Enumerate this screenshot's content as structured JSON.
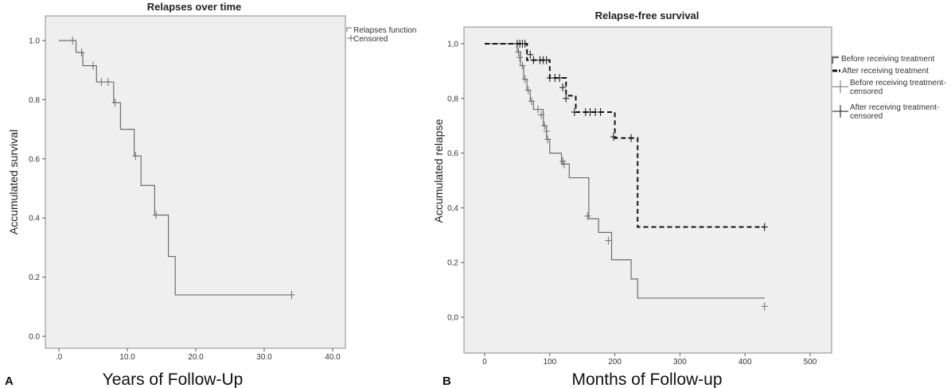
{
  "panels": {
    "A": {
      "letter": "A",
      "legend": {
        "relapses": "Relapses function",
        "censored": "Censored"
      }
    },
    "B": {
      "letter": "B",
      "legend": {
        "before": "Before receiving treatment",
        "after": "After receiving treatment",
        "before_censored_1": "Before receiving treatment-",
        "before_censored_2": "censored",
        "after_censored_1": "After receiving treatment-",
        "after_censored_2": "censored"
      }
    }
  },
  "chart_data": [
    {
      "type": "line",
      "title": "Relapses over time",
      "xlabel": "Years of Follow-Up",
      "ylabel": "Accumulated survival",
      "xlim": [
        0,
        40
      ],
      "ylim": [
        0,
        1
      ],
      "x_ticks": [
        0,
        10,
        20,
        30,
        40
      ],
      "x_tick_labels": [
        ".0",
        "10.0",
        "20.0",
        "30.0",
        "40.0"
      ],
      "y_ticks": [
        0,
        0.2,
        0.4,
        0.6,
        0.8,
        1.0
      ],
      "y_tick_labels": [
        "0.0",
        "0.2",
        "0.4",
        "0.6",
        "0.8",
        "1.0"
      ],
      "legend_position": "top-right, outside",
      "series": [
        {
          "name": "Relapses function",
          "style": "step",
          "color": "#6e6e6e",
          "x": [
            0,
            2.5,
            3.5,
            5.5,
            8,
            9,
            11,
            12,
            14,
            16,
            17,
            34
          ],
          "y": [
            1.0,
            0.96,
            0.915,
            0.86,
            0.79,
            0.7,
            0.61,
            0.51,
            0.41,
            0.27,
            0.14,
            0.14
          ]
        },
        {
          "name": "Censored",
          "style": "marker",
          "color": "#6e6e6e",
          "x": [
            2,
            3.3,
            5,
            6.2,
            7.2,
            8.2,
            11.2,
            14.2,
            34
          ],
          "y": [
            1.0,
            0.96,
            0.915,
            0.86,
            0.86,
            0.79,
            0.61,
            0.41,
            0.14
          ]
        }
      ]
    },
    {
      "type": "line",
      "title": "Relapse-free survival",
      "xlabel": "Months of Follow-up",
      "ylabel": "Accumulated relapse",
      "xlim": [
        -30,
        510
      ],
      "ylim": [
        -0.08,
        1.08
      ],
      "x_ticks": [
        0,
        100,
        200,
        300,
        400,
        500
      ],
      "x_tick_labels": [
        "0",
        "100",
        "200",
        "300",
        "400",
        "500"
      ],
      "y_ticks": [
        0,
        0.2,
        0.4,
        0.6,
        0.8,
        1.0
      ],
      "y_tick_labels": [
        "0,0",
        "0,2",
        "0,4",
        "0,6",
        "0,8",
        "1,0"
      ],
      "legend_position": "top-right, outside",
      "series": [
        {
          "name": "Before receiving treatment",
          "style": "step",
          "color": "#6e6e6e",
          "x": [
            0,
            50,
            55,
            60,
            65,
            70,
            75,
            90,
            95,
            100,
            118,
            130,
            160,
            175,
            195,
            225,
            235,
            430
          ],
          "y": [
            1.0,
            0.97,
            0.92,
            0.87,
            0.83,
            0.79,
            0.76,
            0.7,
            0.65,
            0.6,
            0.56,
            0.51,
            0.36,
            0.31,
            0.21,
            0.14,
            0.07,
            0.07
          ]
        },
        {
          "name": "After receiving treatment",
          "style": "step-dashed",
          "color": "#111111",
          "x": [
            0,
            65,
            100,
            125,
            140,
            200,
            235,
            430
          ],
          "y": [
            1.0,
            0.94,
            0.875,
            0.81,
            0.75,
            0.655,
            0.33,
            0.33
          ]
        },
        {
          "name": "Before receiving treatment-censored",
          "style": "marker",
          "color": "#6e6e6e",
          "x": [
            52,
            54,
            58,
            62,
            67,
            72,
            82,
            87,
            92,
            95,
            97,
            120,
            122,
            158,
            190,
            430
          ],
          "y": [
            0.97,
            0.95,
            0.92,
            0.87,
            0.83,
            0.79,
            0.76,
            0.74,
            0.7,
            0.68,
            0.65,
            0.57,
            0.56,
            0.37,
            0.28,
            0.04
          ]
        },
        {
          "name": "After receiving treatment-censored",
          "style": "marker",
          "color": "#111111",
          "x": [
            50,
            54,
            58,
            62,
            70,
            75,
            85,
            90,
            95,
            100,
            108,
            115,
            120,
            125,
            138,
            155,
            162,
            170,
            178,
            198,
            225,
            430
          ],
          "y": [
            1.0,
            1.0,
            1.0,
            1.0,
            0.96,
            0.94,
            0.94,
            0.94,
            0.94,
            0.875,
            0.875,
            0.875,
            0.84,
            0.8,
            0.75,
            0.75,
            0.75,
            0.75,
            0.75,
            0.66,
            0.655,
            0.33
          ]
        }
      ]
    }
  ]
}
